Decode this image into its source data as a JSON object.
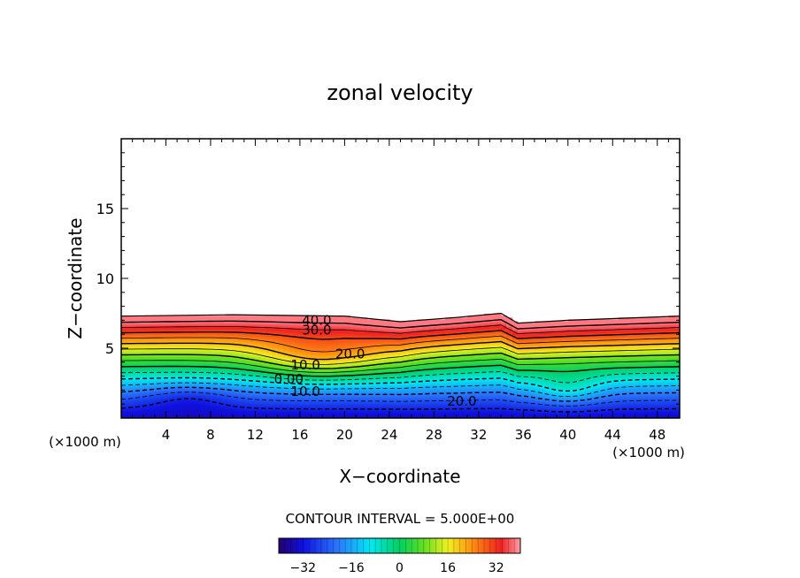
{
  "chart_data": {
    "type": "heatmap",
    "title": "zonal velocity",
    "xlabel": "X−coordinate",
    "ylabel": "Z−coordinate",
    "x_unit_left": "(×1000 m)",
    "x_unit_right": "(×1000 m)",
    "xlim": [
      0,
      50
    ],
    "ylim": [
      0,
      20
    ],
    "x_ticks": [
      4,
      8,
      12,
      16,
      20,
      24,
      28,
      32,
      36,
      40,
      44,
      48
    ],
    "y_ticks": [
      5,
      10,
      15
    ],
    "contour_interval_label": "CONTOUR INTERVAL = 5.000E+00",
    "colorbar": {
      "range": [
        -40,
        40
      ],
      "ticks": [
        -32,
        -16,
        0,
        16,
        32
      ]
    },
    "contour_labels": [
      {
        "text": "40.0",
        "x": 17.5,
        "z": 7.0
      },
      {
        "text": "30.0",
        "x": 17.5,
        "z": 6.3
      },
      {
        "text": "20.0",
        "x": 20.5,
        "z": 4.6
      },
      {
        "text": "10.0",
        "x": 16.5,
        "z": 3.8
      },
      {
        "text": "0.00",
        "x": 15.0,
        "z": 2.8
      },
      {
        "text": "10.0",
        "x": 16.5,
        "z": 1.9
      },
      {
        "text": "20.0",
        "x": 30.5,
        "z": 1.2
      }
    ],
    "domain_top": [
      {
        "x": 0,
        "z": 7.3
      },
      {
        "x": 10,
        "z": 7.4
      },
      {
        "x": 20,
        "z": 7.3
      },
      {
        "x": 25,
        "z": 6.9
      },
      {
        "x": 30,
        "z": 7.2
      },
      {
        "x": 34,
        "z": 7.5
      },
      {
        "x": 35.5,
        "z": 6.8
      },
      {
        "x": 40,
        "z": 7.0
      },
      {
        "x": 50,
        "z": 7.3
      }
    ]
  }
}
